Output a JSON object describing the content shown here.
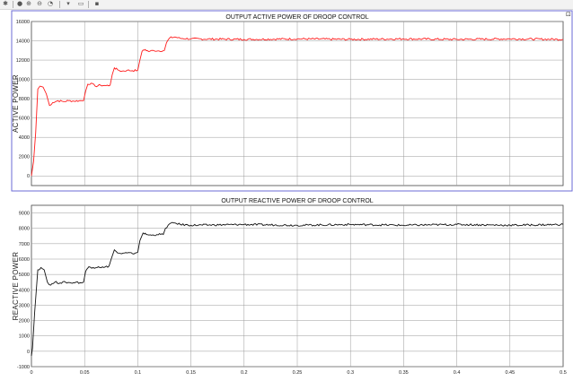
{
  "toolbar": {
    "icons": [
      "settings-icon",
      "pan-icon",
      "zoom-in-icon",
      "zoom-out-icon",
      "cursor-icon",
      "legend-icon",
      "data-cursor-icon"
    ]
  },
  "colors": {
    "active_series": "#ff1a1a",
    "reactive_series": "#111111",
    "grid": "#9a9a9a",
    "selected_axes_border": "#6b6bd6"
  },
  "chart_data": [
    {
      "type": "line",
      "title": "OUTPUT ACTIVE POWER OF DROOP CONTROL",
      "xlabel": "",
      "ylabel": "ACTIVE POWER",
      "xlim": [
        0,
        0.5
      ],
      "ylim": [
        -1000,
        16000
      ],
      "yticks": [
        "0",
        "2000",
        "4000",
        "6000",
        "8000",
        "10000",
        "12000",
        "14000",
        "16000"
      ],
      "xticks": [],
      "grid": true,
      "series": [
        {
          "color": "#ff1a1a",
          "points": [
            [
              0,
              0
            ],
            [
              0.002,
              1500
            ],
            [
              0.004,
              4500
            ],
            [
              0.006,
              9000
            ],
            [
              0.008,
              9300
            ],
            [
              0.011,
              9200
            ],
            [
              0.014,
              8500
            ],
            [
              0.017,
              7300
            ],
            [
              0.02,
              7600
            ],
            [
              0.025,
              7800
            ],
            [
              0.03,
              7700
            ],
            [
              0.035,
              7800
            ],
            [
              0.04,
              7750
            ],
            [
              0.045,
              7800
            ],
            [
              0.049,
              7800
            ],
            [
              0.051,
              8800
            ],
            [
              0.053,
              9500
            ],
            [
              0.056,
              9600
            ],
            [
              0.06,
              9300
            ],
            [
              0.065,
              9400
            ],
            [
              0.07,
              9350
            ],
            [
              0.074,
              9400
            ],
            [
              0.076,
              10500
            ],
            [
              0.078,
              11200
            ],
            [
              0.081,
              11000
            ],
            [
              0.085,
              10850
            ],
            [
              0.09,
              10950
            ],
            [
              0.095,
              10900
            ],
            [
              0.1,
              10950
            ],
            [
              0.102,
              12000
            ],
            [
              0.104,
              12900
            ],
            [
              0.107,
              13100
            ],
            [
              0.11,
              12900
            ],
            [
              0.115,
              13000
            ],
            [
              0.12,
              12950
            ],
            [
              0.125,
              13000
            ],
            [
              0.127,
              13800
            ],
            [
              0.13,
              14300
            ],
            [
              0.135,
              14400
            ],
            [
              0.14,
              14250
            ],
            [
              0.15,
              14200
            ],
            [
              0.2,
              14150
            ],
            [
              0.25,
              14200
            ],
            [
              0.3,
              14150
            ],
            [
              0.35,
              14200
            ],
            [
              0.4,
              14150
            ],
            [
              0.45,
              14200
            ],
            [
              0.5,
              14150
            ]
          ]
        }
      ]
    },
    {
      "type": "line",
      "title": "OUTPUT REACTIVE POWER OF DROOP CONTROL",
      "xlabel": "",
      "ylabel": "REACTIVE POWER",
      "xlim": [
        0,
        0.5
      ],
      "ylim": [
        -1000,
        9500
      ],
      "yticks": [
        "-1000",
        "0",
        "1000",
        "2000",
        "3000",
        "4000",
        "5000",
        "6000",
        "7000",
        "8000",
        "9000"
      ],
      "xticks": [
        "0",
        "0.05",
        "0.1",
        "0.15",
        "0.2",
        "0.25",
        "0.3",
        "0.35",
        "0.4",
        "0.45",
        "0.5"
      ],
      "grid": true,
      "series": [
        {
          "color": "#111111",
          "points": [
            [
              0,
              -300
            ],
            [
              0.001,
              200
            ],
            [
              0.003,
              2500
            ],
            [
              0.006,
              5300
            ],
            [
              0.009,
              5450
            ],
            [
              0.012,
              5300
            ],
            [
              0.015,
              4500
            ],
            [
              0.018,
              4300
            ],
            [
              0.022,
              4500
            ],
            [
              0.027,
              4450
            ],
            [
              0.032,
              4500
            ],
            [
              0.037,
              4450
            ],
            [
              0.042,
              4500
            ],
            [
              0.047,
              4450
            ],
            [
              0.049,
              4500
            ],
            [
              0.051,
              5200
            ],
            [
              0.054,
              5500
            ],
            [
              0.058,
              5450
            ],
            [
              0.063,
              5500
            ],
            [
              0.068,
              5450
            ],
            [
              0.073,
              5550
            ],
            [
              0.075,
              6000
            ],
            [
              0.078,
              6600
            ],
            [
              0.081,
              6400
            ],
            [
              0.085,
              6350
            ],
            [
              0.09,
              6400
            ],
            [
              0.095,
              6350
            ],
            [
              0.1,
              6450
            ],
            [
              0.102,
              7200
            ],
            [
              0.105,
              7700
            ],
            [
              0.108,
              7600
            ],
            [
              0.113,
              7550
            ],
            [
              0.118,
              7600
            ],
            [
              0.124,
              7600
            ],
            [
              0.126,
              8000
            ],
            [
              0.13,
              8300
            ],
            [
              0.135,
              8350
            ],
            [
              0.14,
              8250
            ],
            [
              0.15,
              8200
            ],
            [
              0.2,
              8250
            ],
            [
              0.25,
              8200
            ],
            [
              0.3,
              8250
            ],
            [
              0.35,
              8200
            ],
            [
              0.4,
              8250
            ],
            [
              0.45,
              8200
            ],
            [
              0.5,
              8250
            ]
          ]
        }
      ]
    }
  ]
}
